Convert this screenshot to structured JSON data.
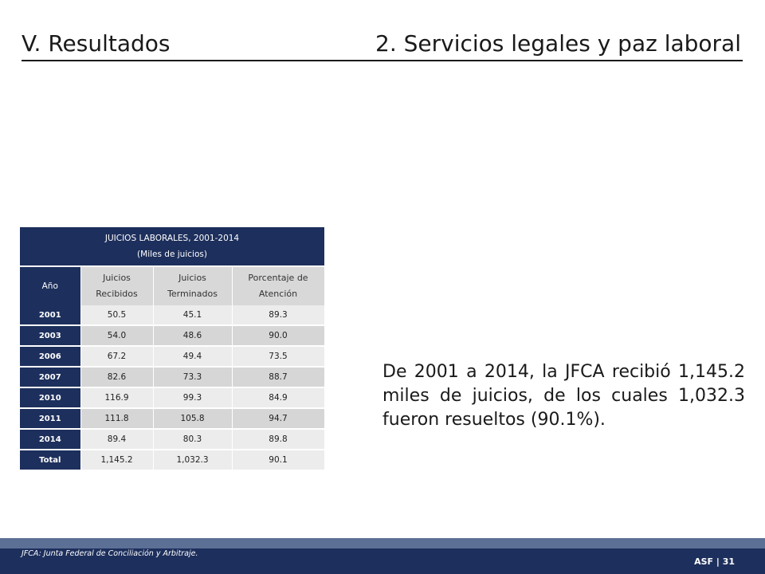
{
  "header": {
    "section": "V. Resultados",
    "subsection": "2. Servicios legales y paz laboral"
  },
  "table": {
    "title": "JUICIOS LABORALES, 2001-2014",
    "subtitle": "(Miles de juicios)",
    "columns": [
      "Año",
      "Juicios Recibidos",
      "Juicios Terminados",
      "Porcentaje de Atención"
    ],
    "rows": [
      {
        "year": "2001",
        "recibidos": "50.5",
        "terminados": "45.1",
        "porcentaje": "89.3"
      },
      {
        "year": "2003",
        "recibidos": "54.0",
        "terminados": "48.6",
        "porcentaje": "90.0"
      },
      {
        "year": "2006",
        "recibidos": "67.2",
        "terminados": "49.4",
        "porcentaje": "73.5"
      },
      {
        "year": "2007",
        "recibidos": "82.6",
        "terminados": "73.3",
        "porcentaje": "88.7"
      },
      {
        "year": "2010",
        "recibidos": "116.9",
        "terminados": "99.3",
        "porcentaje": "84.9"
      },
      {
        "year": "2011",
        "recibidos": "111.8",
        "terminados": "105.8",
        "porcentaje": "94.7"
      },
      {
        "year": "2014",
        "recibidos": "89.4",
        "terminados": "80.3",
        "porcentaje": "89.8"
      },
      {
        "year": "Total",
        "recibidos": "1,145.2",
        "terminados": "1,032.3",
        "porcentaje": "90.1"
      }
    ]
  },
  "summary": "De 2001 a 2014, la JFCA recibió 1,145.2 miles de juicios, de los cuales 1,032.3 fueron resueltos (90.1%).",
  "footer": {
    "note": "JFCA: Junta Federal de Conciliación y Arbitraje.",
    "page": "ASF | 31"
  },
  "colors": {
    "navy": "#1d2f5c",
    "footer_band": "#5c6f95",
    "cell_light": "#ececec",
    "cell_dark": "#d6d6d6"
  }
}
